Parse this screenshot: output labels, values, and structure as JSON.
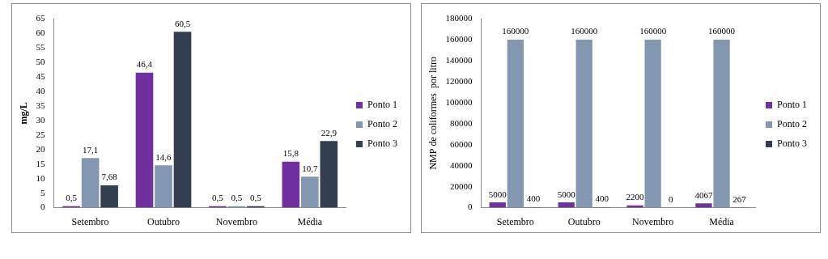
{
  "chart_data": [
    {
      "type": "bar",
      "y_label": "mg/L",
      "categories": [
        "Setembro",
        "Outubro",
        "Novembro",
        "Média"
      ],
      "series": [
        {
          "name": "Ponto 1",
          "color": "#7030a0",
          "values": [
            0.5,
            46.4,
            0.5,
            15.8
          ],
          "value_labels": [
            "0,5",
            "46,4",
            "0,5",
            "15,8"
          ]
        },
        {
          "name": "Ponto 2",
          "color": "#8497b0",
          "values": [
            17.1,
            14.6,
            0.5,
            10.7
          ],
          "value_labels": [
            "17,1",
            "14,6",
            "0,5",
            "10,7"
          ]
        },
        {
          "name": "Ponto 3",
          "color": "#333f50",
          "values": [
            7.68,
            60.5,
            0.5,
            22.9
          ],
          "value_labels": [
            "7,68",
            "60,5",
            "0,5",
            "22,9"
          ]
        }
      ],
      "ylim": [
        0,
        65
      ],
      "yticks": [
        0,
        5,
        10,
        15,
        20,
        25,
        30,
        35,
        40,
        45,
        50,
        55,
        60,
        65
      ],
      "grid": false,
      "legend": "right",
      "data_labels": true
    },
    {
      "type": "bar",
      "y_label": "NMP de coliformes  por litro",
      "categories": [
        "Setembro",
        "Outubro",
        "Novembro",
        "Média"
      ],
      "series": [
        {
          "name": "Ponto 1",
          "color": "#7030a0",
          "values": [
            5000,
            5000,
            2200,
            4067
          ]
        },
        {
          "name": "Ponto 2",
          "color": "#8497b0",
          "values": [
            160000,
            160000,
            160000,
            160000
          ]
        },
        {
          "name": "Ponto 3",
          "color": "#333f50",
          "values": [
            400,
            400,
            0,
            267
          ]
        }
      ],
      "ylim": [
        0,
        180000
      ],
      "yticks": [
        0,
        20000,
        40000,
        60000,
        80000,
        100000,
        120000,
        140000,
        160000,
        180000
      ],
      "grid": false,
      "legend": "right",
      "data_labels": true
    }
  ]
}
